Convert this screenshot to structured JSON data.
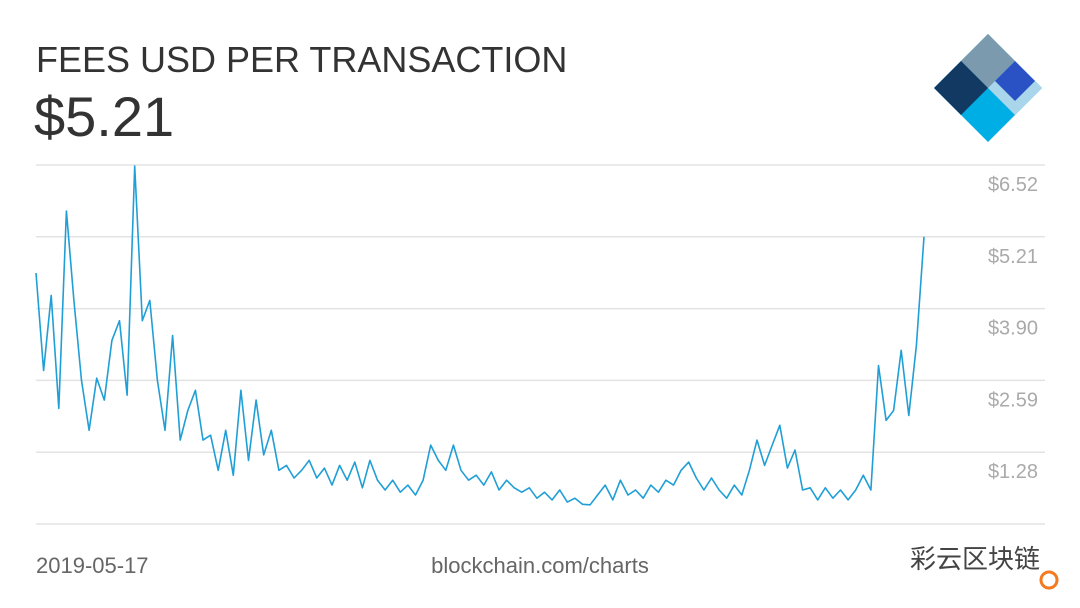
{
  "chart_data": {
    "type": "line",
    "title": "FEES USD PER TRANSACTION",
    "subtitle": "$5.21",
    "source": "blockchain.com/charts",
    "watermark": "彩云区块链",
    "categories": [
      "2019-05-17",
      null,
      null,
      null,
      null,
      null,
      null,
      null,
      null,
      null,
      null,
      null,
      null,
      null,
      null,
      null,
      null,
      null,
      null,
      null,
      null,
      null,
      null,
      null,
      null,
      null,
      null,
      null,
      null,
      null,
      null,
      null,
      null,
      null,
      null,
      null,
      null,
      null,
      null,
      null,
      null,
      null,
      null,
      null,
      null,
      null,
      null,
      null,
      null,
      null,
      null,
      null,
      null,
      null,
      null,
      null,
      null,
      null,
      null,
      null,
      null,
      null,
      null,
      null,
      null,
      null,
      null,
      null,
      null,
      null,
      null,
      null,
      null,
      null,
      null,
      null,
      null,
      null,
      null,
      null,
      null,
      null,
      null,
      null,
      null,
      null,
      null,
      null,
      null,
      null,
      null,
      null,
      null,
      null,
      null,
      null,
      null,
      null,
      null,
      null,
      null,
      null,
      null,
      null,
      null,
      null,
      null,
      null,
      null,
      null,
      null,
      null,
      null,
      null,
      null,
      null,
      null,
      null
    ],
    "values": [
      4.55,
      2.77,
      4.14,
      2.08,
      5.68,
      4.05,
      2.59,
      1.68,
      2.63,
      2.23,
      3.32,
      3.68,
      2.32,
      6.5,
      3.68,
      4.05,
      2.59,
      1.68,
      3.41,
      1.5,
      2.04,
      2.41,
      1.5,
      1.59,
      0.95,
      1.68,
      0.86,
      2.41,
      1.13,
      2.23,
      1.23,
      1.68,
      0.95,
      1.04,
      0.81,
      0.95,
      1.13,
      0.81,
      0.99,
      0.68,
      1.04,
      0.77,
      1.1,
      0.63,
      1.13,
      0.77,
      0.59,
      0.77,
      0.55,
      0.68,
      0.5,
      0.77,
      1.41,
      1.13,
      0.95,
      1.41,
      0.95,
      0.77,
      0.86,
      0.68,
      0.92,
      0.59,
      0.77,
      0.63,
      0.55,
      0.63,
      0.44,
      0.55,
      0.41,
      0.59,
      0.37,
      0.44,
      0.33,
      0.32,
      0.5,
      0.68,
      0.41,
      0.77,
      0.5,
      0.59,
      0.44,
      0.68,
      0.55,
      0.77,
      0.68,
      0.95,
      1.1,
      0.81,
      0.59,
      0.81,
      0.59,
      0.44,
      0.68,
      0.5,
      0.95,
      1.5,
      1.04,
      1.41,
      1.77,
      0.99,
      1.32,
      0.59,
      0.63,
      0.41,
      0.63,
      0.44,
      0.59,
      0.41,
      0.59,
      0.86,
      0.59,
      2.86,
      1.86,
      2.04,
      3.14,
      1.95,
      3.23,
      5.21
    ],
    "color": "#1f9fd6",
    "ylim": [
      -0.03,
      6.52
    ],
    "yticks": [
      {
        "value": 1.28,
        "label": "$1.28"
      },
      {
        "value": 2.59,
        "label": "$2.59"
      },
      {
        "value": 3.9,
        "label": "$3.90"
      },
      {
        "value": 5.21,
        "label": "$5.21"
      },
      {
        "value": 6.52,
        "label": "$6.52"
      }
    ],
    "grid": true
  }
}
